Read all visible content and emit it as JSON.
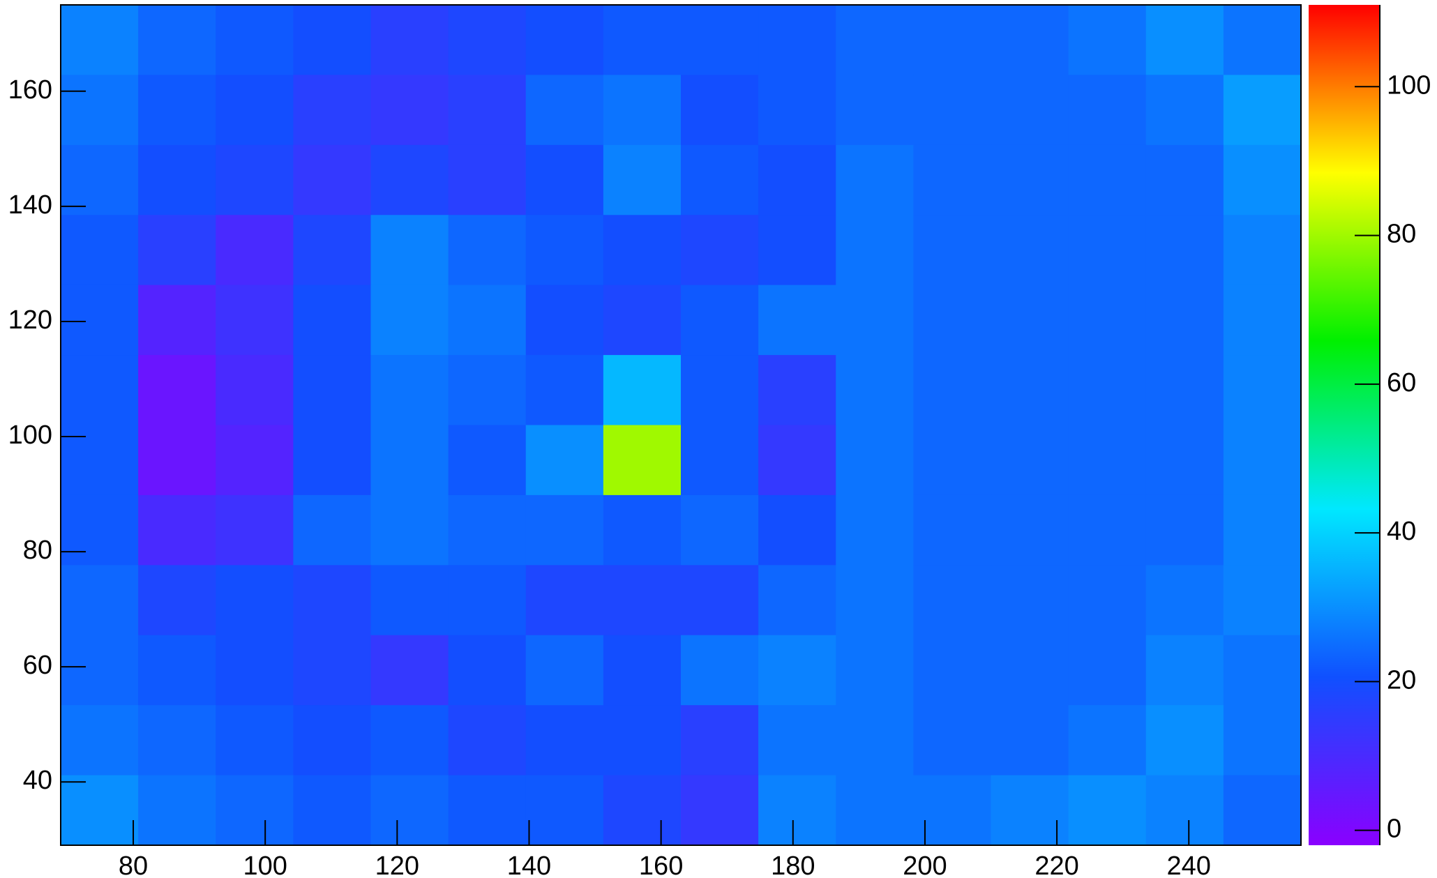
{
  "chart_data": {
    "type": "heatmap",
    "xlim": [
      69,
      257
    ],
    "ylim": [
      29,
      175
    ],
    "zlim": [
      -2,
      111
    ],
    "xticks": [
      80,
      100,
      120,
      140,
      160,
      180,
      200,
      220,
      240
    ],
    "yticks": [
      40,
      60,
      80,
      100,
      120,
      140,
      160
    ],
    "zticks": [
      0,
      20,
      40,
      60,
      80,
      100
    ],
    "colorscale": [
      "#8a00ff",
      "#1050ff",
      "#00e8ff",
      "#00f000",
      "#ffff00",
      "#ff0000"
    ],
    "z": [
      [
        28,
        24,
        22,
        20,
        16,
        18,
        20,
        22,
        22,
        22,
        24,
        24,
        24,
        26,
        30,
        26
      ],
      [
        26,
        22,
        20,
        16,
        14,
        16,
        24,
        26,
        20,
        22,
        24,
        24,
        24,
        24,
        26,
        32
      ],
      [
        24,
        20,
        18,
        14,
        18,
        16,
        20,
        28,
        22,
        20,
        26,
        24,
        24,
        24,
        24,
        30
      ],
      [
        22,
        16,
        10,
        18,
        28,
        24,
        22,
        20,
        18,
        20,
        26,
        24,
        24,
        24,
        24,
        28
      ],
      [
        22,
        8,
        12,
        20,
        28,
        26,
        20,
        18,
        22,
        26,
        26,
        24,
        24,
        24,
        24,
        28
      ],
      [
        22,
        4,
        10,
        20,
        26,
        24,
        22,
        36,
        22,
        16,
        26,
        24,
        24,
        24,
        24,
        28
      ],
      [
        22,
        4,
        8,
        20,
        26,
        22,
        30,
        80,
        22,
        14,
        26,
        24,
        24,
        24,
        24,
        28
      ],
      [
        22,
        10,
        12,
        24,
        26,
        24,
        24,
        22,
        24,
        20,
        26,
        24,
        24,
        24,
        24,
        28
      ],
      [
        24,
        18,
        20,
        18,
        22,
        22,
        18,
        18,
        18,
        24,
        26,
        24,
        24,
        24,
        26,
        28
      ],
      [
        24,
        22,
        20,
        18,
        14,
        20,
        24,
        20,
        26,
        28,
        26,
        24,
        24,
        24,
        28,
        26
      ],
      [
        26,
        24,
        22,
        20,
        22,
        18,
        20,
        20,
        16,
        26,
        26,
        24,
        24,
        26,
        30,
        26
      ],
      [
        30,
        26,
        24,
        22,
        24,
        22,
        22,
        18,
        14,
        28,
        26,
        26,
        28,
        30,
        28,
        24
      ]
    ]
  }
}
